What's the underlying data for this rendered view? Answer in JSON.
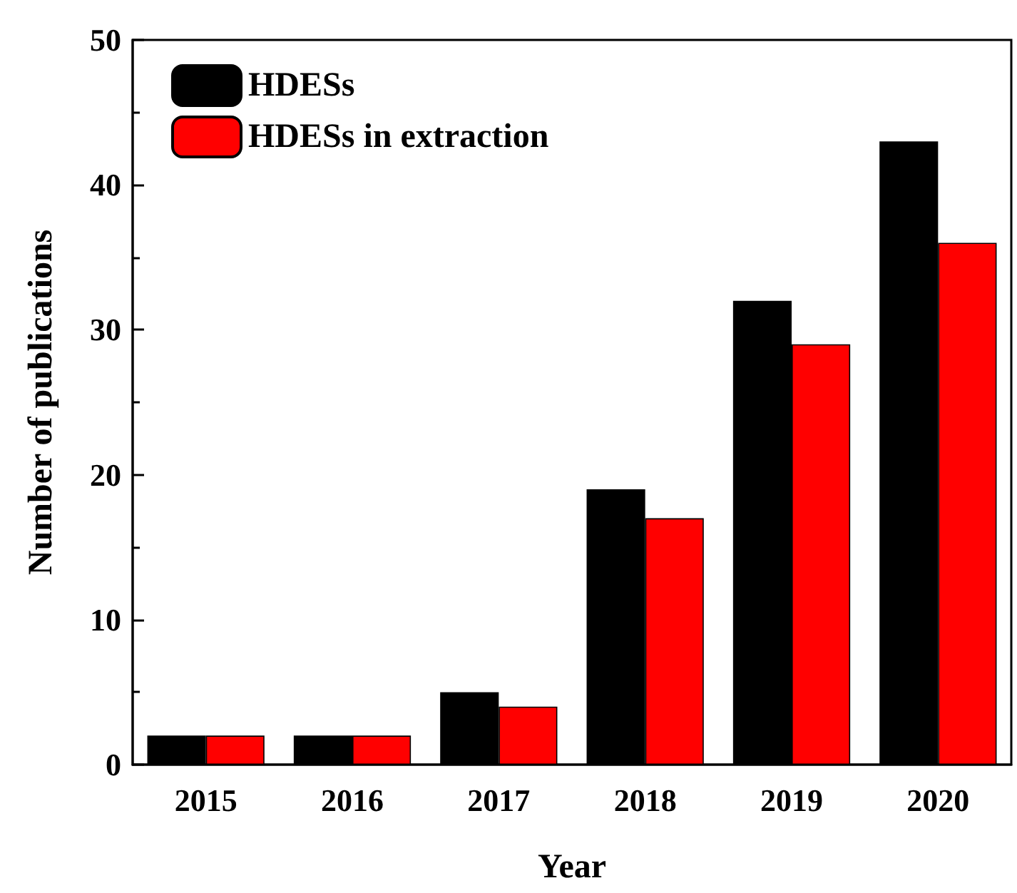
{
  "chart_data": {
    "type": "bar",
    "xlabel": "Year",
    "ylabel": "Number of publications",
    "categories": [
      "2015",
      "2016",
      "2017",
      "2018",
      "2019",
      "2020"
    ],
    "series": [
      {
        "name": "HDESs",
        "color": "#000000",
        "values": [
          2,
          2,
          5,
          19,
          32,
          43
        ]
      },
      {
        "name": "HDESs in extraction",
        "color": "#ff0000",
        "values": [
          2,
          2,
          4,
          17,
          29,
          36
        ]
      }
    ],
    "ylim": [
      0,
      50
    ],
    "yticks": [
      0,
      10,
      20,
      30,
      40,
      50
    ],
    "grid": false,
    "legend": "top left"
  }
}
